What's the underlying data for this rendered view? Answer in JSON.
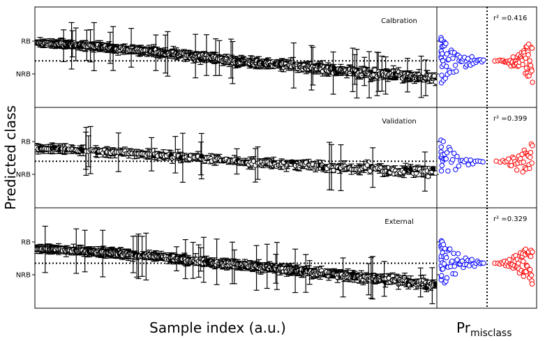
{
  "figure": {
    "ylabel": "Predicted class",
    "xlabel_left": "Sample index (a.u.)",
    "xlabel_right_main": "Pr",
    "xlabel_right_sub": "misclass"
  },
  "colors": {
    "marker_edge": "#000000",
    "left_fill_open": "#ffffff",
    "left_fill_closed": "#000000",
    "right_below": "#0000ff",
    "right_above": "#ff0000",
    "reference_line": "#000000"
  },
  "chart_data": [
    {
      "type": "scatter",
      "title": "Calbration",
      "y_tick_labels": [
        "RB",
        "NRB"
      ],
      "y_ticks": [
        1.0,
        0.0
      ],
      "threshold": 0.4,
      "trend": {
        "start": 0.95,
        "mid": 0.4,
        "end": -0.15,
        "n_points": 420
      },
      "r2_label": "r² =",
      "r2_value": "0.416",
      "right_panel": {
        "n_points": 120
      }
    },
    {
      "type": "scatter",
      "title": "Validation",
      "y_tick_labels": [
        "RB",
        "NRB"
      ],
      "y_ticks": [
        1.0,
        0.0
      ],
      "threshold": 0.4,
      "trend": {
        "start": 0.8,
        "mid": 0.4,
        "end": 0.05,
        "n_points": 230
      },
      "r2_label": "r² =",
      "r2_value": "0.399",
      "right_panel": {
        "n_points": 70
      }
    },
    {
      "type": "scatter",
      "title": "External",
      "y_tick_labels": [
        "RB",
        "NRB"
      ],
      "y_ticks": [
        1.0,
        0.0
      ],
      "threshold": 0.35,
      "trend": {
        "start": 0.8,
        "mid": 0.3,
        "end": -0.3,
        "n_points": 420
      },
      "r2_label": "r² =",
      "r2_value": "0.329",
      "right_panel": {
        "n_points": 120
      }
    }
  ]
}
